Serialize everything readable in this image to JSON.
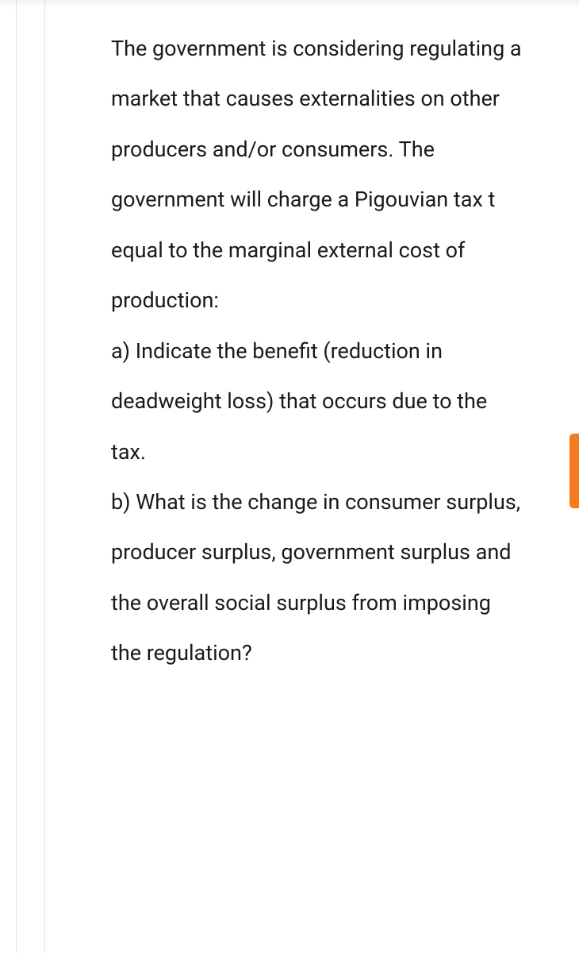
{
  "question": {
    "intro": "The government is considering regulating a market that causes externalities on other producers and/or consumers. The government will charge a Pigouvian tax t equal to the marginal external cost of production:",
    "part_a": "a) Indicate the benefit (reduction in deadweight loss) that occurs due to the tax.",
    "part_b": "b) What is the change in consumer surplus, producer surplus, government surplus and the overall social surplus from imposing the regulation?"
  },
  "styling": {
    "text_color": "#1a1a1a",
    "background_color": "#ffffff",
    "border_color": "#e0e0e0",
    "accent_color": "#f47b20",
    "font_size": 27,
    "line_height": 2.35
  }
}
